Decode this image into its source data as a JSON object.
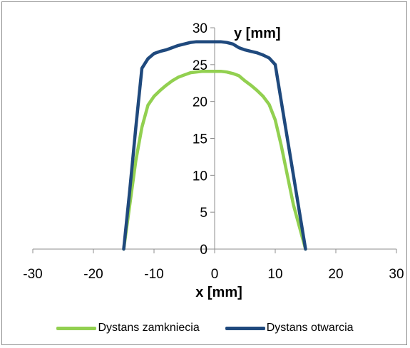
{
  "chart_data": {
    "type": "line",
    "xlabel": "x [mm]",
    "ylabel": "y [mm]",
    "xlim": [
      -30,
      30
    ],
    "ylim": [
      0,
      30
    ],
    "xticks": [
      "-30",
      "-20",
      "-10",
      "0",
      "10",
      "20",
      "30"
    ],
    "yticks": [
      "0",
      "5",
      "10",
      "15",
      "20",
      "25",
      "30"
    ],
    "grid": false,
    "legend_position": "bottom",
    "series": [
      {
        "name": "Dystans zamkniecia",
        "color": "#92d050",
        "x": [
          -15,
          -14,
          -13,
          -12,
          -11,
          -10,
          -9,
          -8,
          -7,
          -6,
          -5,
          -4,
          -3,
          -2,
          -1,
          0,
          1,
          2,
          3,
          4,
          5,
          6,
          7,
          8,
          9,
          10,
          11,
          12,
          13,
          14,
          15
        ],
        "y": [
          0,
          6,
          12,
          16.5,
          19.5,
          20.7,
          21.5,
          22.2,
          22.8,
          23.3,
          23.6,
          23.9,
          24.0,
          24.1,
          24.1,
          24.1,
          24.1,
          24.0,
          23.8,
          23.5,
          22.8,
          22.2,
          21.5,
          20.7,
          19.6,
          17.5,
          14,
          10,
          6,
          3,
          0
        ]
      },
      {
        "name": "Dystans otwarcia",
        "color": "#1f497d",
        "x": [
          -15,
          -14,
          -13,
          -12,
          -11,
          -10,
          -9,
          -8,
          -7,
          -6,
          -5,
          -4,
          -3,
          -2,
          -1,
          0,
          1,
          2,
          3,
          4,
          5,
          6,
          7,
          8,
          9,
          10,
          11,
          12,
          13,
          14,
          15
        ],
        "y": [
          0,
          8,
          16.5,
          24.5,
          25.8,
          26.5,
          26.8,
          27.0,
          27.3,
          27.6,
          27.8,
          28.0,
          28.1,
          28.1,
          28.1,
          28.1,
          28.1,
          28.0,
          27.8,
          27.3,
          27.0,
          26.8,
          26.6,
          26.3,
          25.9,
          25.0,
          20,
          15,
          10,
          5,
          0
        ]
      }
    ]
  }
}
